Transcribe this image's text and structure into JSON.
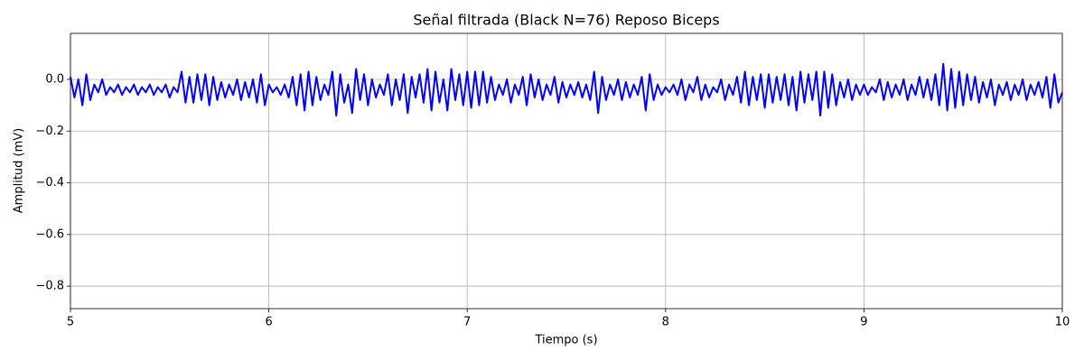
{
  "chart_data": {
    "type": "line",
    "title": "Señal filtrada (Black N=76) Reposo Biceps",
    "xlabel": "Tiempo (s)",
    "ylabel": "Amplitud (mV)",
    "color": "#0000ff",
    "grid": true,
    "xlim": [
      5,
      10
    ],
    "xticks": [
      5,
      6,
      7,
      8,
      9,
      10
    ],
    "ylim": [
      -0.887,
      0.178
    ],
    "yticks": [
      {
        "value": -0.8,
        "label": "−0.8"
      },
      {
        "value": -0.6,
        "label": "−0.6"
      },
      {
        "value": -0.4,
        "label": "−0.4"
      },
      {
        "value": -0.2,
        "label": "−0.2"
      },
      {
        "value": 0,
        "label": "0.0"
      }
    ],
    "x": [
      5,
      5.02,
      5.04,
      5.06,
      5.08,
      5.1,
      5.12,
      5.14,
      5.16,
      5.18,
      5.2,
      5.22,
      5.24,
      5.26,
      5.28,
      5.3,
      5.32,
      5.34,
      5.36,
      5.38,
      5.4,
      5.42,
      5.44,
      5.46,
      5.48,
      5.5,
      5.52,
      5.54,
      5.56,
      5.58,
      5.6,
      5.62,
      5.64,
      5.66,
      5.68,
      5.7,
      5.72,
      5.74,
      5.76,
      5.78,
      5.8,
      5.82,
      5.84,
      5.86,
      5.88,
      5.9,
      5.92,
      5.94,
      5.96,
      5.98,
      6,
      6.02,
      6.04,
      6.06,
      6.08,
      6.1,
      6.12,
      6.14,
      6.16,
      6.18,
      6.2,
      6.22,
      6.24,
      6.26,
      6.28,
      6.3,
      6.32,
      6.34,
      6.36,
      6.38,
      6.4,
      6.42,
      6.44,
      6.46,
      6.48,
      6.5,
      6.52,
      6.54,
      6.56,
      6.58,
      6.6,
      6.62,
      6.64,
      6.66,
      6.68,
      6.7,
      6.72,
      6.74,
      6.76,
      6.78,
      6.8,
      6.82,
      6.84,
      6.86,
      6.88,
      6.9,
      6.92,
      6.94,
      6.96,
      6.98,
      7,
      7.02,
      7.04,
      7.06,
      7.08,
      7.1,
      7.12,
      7.14,
      7.16,
      7.18,
      7.2,
      7.22,
      7.24,
      7.26,
      7.28,
      7.3,
      7.32,
      7.34,
      7.36,
      7.38,
      7.4,
      7.42,
      7.44,
      7.46,
      7.48,
      7.5,
      7.52,
      7.54,
      7.56,
      7.58,
      7.6,
      7.62,
      7.64,
      7.66,
      7.68,
      7.7,
      7.72,
      7.74,
      7.76,
      7.78,
      7.8,
      7.82,
      7.84,
      7.86,
      7.88,
      7.9,
      7.92,
      7.94,
      7.96,
      7.98,
      8,
      8.02,
      8.04,
      8.06,
      8.08,
      8.1,
      8.12,
      8.14,
      8.16,
      8.18,
      8.2,
      8.22,
      8.24,
      8.26,
      8.28,
      8.3,
      8.32,
      8.34,
      8.36,
      8.38,
      8.4,
      8.42,
      8.44,
      8.46,
      8.48,
      8.5,
      8.52,
      8.54,
      8.56,
      8.58,
      8.6,
      8.62,
      8.64,
      8.66,
      8.68,
      8.7,
      8.72,
      8.74,
      8.76,
      8.78,
      8.8,
      8.82,
      8.84,
      8.86,
      8.88,
      8.9,
      8.92,
      8.94,
      8.96,
      8.98,
      9,
      9.02,
      9.04,
      9.06,
      9.08,
      9.1,
      9.12,
      9.14,
      9.16,
      9.18,
      9.2,
      9.22,
      9.24,
      9.26,
      9.28,
      9.3,
      9.32,
      9.34,
      9.36,
      9.38,
      9.4,
      9.42,
      9.44,
      9.46,
      9.48,
      9.5,
      9.52,
      9.54,
      9.56,
      9.58,
      9.6,
      9.62,
      9.64,
      9.66,
      9.68,
      9.7,
      9.72,
      9.74,
      9.76,
      9.78,
      9.8,
      9.82,
      9.84,
      9.86,
      9.88,
      9.9,
      9.92,
      9.94,
      9.96,
      9.98,
      10
    ],
    "values": [
      0.01,
      -0.07,
      0.0,
      -0.1,
      0.02,
      -0.08,
      -0.02,
      -0.05,
      0.0,
      -0.06,
      -0.03,
      -0.05,
      -0.02,
      -0.06,
      -0.03,
      -0.05,
      -0.02,
      -0.06,
      -0.03,
      -0.05,
      -0.02,
      -0.06,
      -0.03,
      -0.05,
      -0.02,
      -0.07,
      -0.03,
      -0.05,
      0.03,
      -0.09,
      0.01,
      -0.09,
      0.02,
      -0.08,
      0.02,
      -0.1,
      0.01,
      -0.08,
      -0.01,
      -0.07,
      -0.02,
      -0.06,
      0.0,
      -0.08,
      -0.01,
      -0.07,
      0.0,
      -0.09,
      0.02,
      -0.1,
      -0.02,
      -0.05,
      -0.03,
      -0.06,
      -0.02,
      -0.07,
      0.01,
      -0.1,
      0.02,
      -0.12,
      0.03,
      -0.1,
      0.01,
      -0.08,
      -0.02,
      -0.06,
      0.03,
      -0.14,
      0.02,
      -0.09,
      -0.02,
      -0.13,
      0.04,
      -0.08,
      0.02,
      -0.1,
      0.0,
      -0.07,
      -0.02,
      -0.06,
      0.02,
      -0.1,
      0.0,
      -0.08,
      0.02,
      -0.13,
      0.01,
      -0.07,
      0.02,
      -0.09,
      0.04,
      -0.12,
      0.03,
      -0.09,
      0.0,
      -0.12,
      0.04,
      -0.08,
      0.02,
      -0.1,
      0.03,
      -0.11,
      0.03,
      -0.1,
      0.03,
      -0.09,
      0.01,
      -0.08,
      -0.02,
      -0.06,
      0.0,
      -0.09,
      -0.02,
      -0.06,
      0.01,
      -0.1,
      0.02,
      -0.07,
      0.0,
      -0.08,
      -0.02,
      -0.06,
      0.01,
      -0.09,
      -0.01,
      -0.07,
      -0.02,
      -0.06,
      -0.01,
      -0.07,
      -0.02,
      -0.08,
      0.03,
      -0.13,
      0.01,
      -0.08,
      -0.02,
      -0.06,
      0.0,
      -0.08,
      -0.01,
      -0.07,
      -0.02,
      -0.06,
      0.01,
      -0.12,
      0.02,
      -0.08,
      -0.02,
      -0.06,
      -0.03,
      -0.05,
      -0.02,
      -0.06,
      0.0,
      -0.08,
      -0.02,
      -0.05,
      0.01,
      -0.08,
      -0.02,
      -0.07,
      -0.03,
      -0.05,
      0.0,
      -0.08,
      -0.02,
      -0.06,
      0.01,
      -0.09,
      0.03,
      -0.1,
      0.01,
      -0.08,
      0.02,
      -0.11,
      0.02,
      -0.09,
      0.01,
      -0.08,
      0.02,
      -0.1,
      0.01,
      -0.12,
      0.03,
      -0.09,
      0.02,
      -0.08,
      0.03,
      -0.14,
      0.03,
      -0.11,
      0.02,
      -0.1,
      -0.01,
      -0.07,
      0.0,
      -0.08,
      -0.02,
      -0.06,
      -0.02,
      -0.06,
      -0.03,
      -0.05,
      0.0,
      -0.08,
      -0.01,
      -0.07,
      -0.02,
      -0.06,
      0.0,
      -0.08,
      -0.02,
      -0.06,
      0.01,
      -0.07,
      0.0,
      -0.08,
      0.02,
      -0.1,
      0.06,
      -0.12,
      0.04,
      -0.11,
      0.03,
      -0.1,
      0.02,
      -0.08,
      0.01,
      -0.09,
      -0.01,
      -0.07,
      0.0,
      -0.1,
      -0.02,
      -0.06,
      -0.01,
      -0.08,
      -0.02,
      -0.06,
      0.0,
      -0.08,
      -0.02,
      -0.06,
      -0.01,
      -0.07,
      0.01,
      -0.11,
      0.02,
      -0.09,
      -0.05
    ]
  }
}
